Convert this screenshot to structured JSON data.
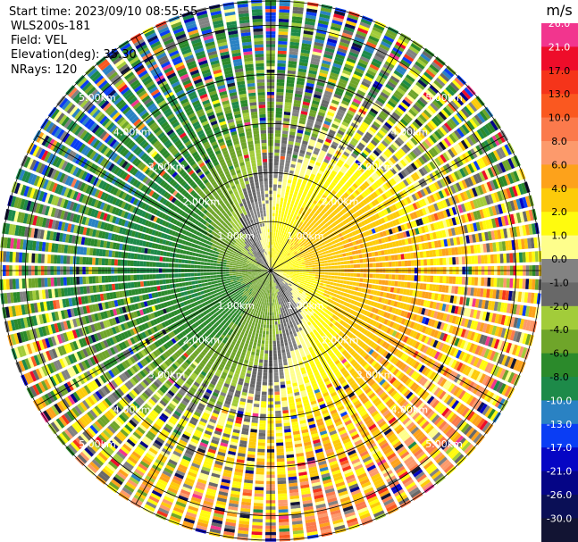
{
  "info": {
    "start_time": "Start time: 2023/09/10 08:55:55",
    "instrument": "WLS200s-181",
    "field": "Field: VEL",
    "elevation": "Elevation(deg): 35.30",
    "nrays": "NRays: 120"
  },
  "chart_data": {
    "type": "heatmap",
    "projection": "polar-ppi",
    "field": "VEL",
    "units": "m/s",
    "nrays": 120,
    "elevation_deg": 35.3,
    "max_range_km": 5.5,
    "range_rings_km": [
      1.0,
      2.0,
      3.0,
      4.0,
      5.0
    ],
    "range_ring_labels": [
      "1.00km",
      "2.00km",
      "3.00km",
      "4.00km",
      "5.00km"
    ],
    "spokes_deg": [
      0,
      30,
      60,
      90,
      120,
      150,
      180,
      210,
      240,
      270,
      300,
      330
    ],
    "colorbar": {
      "unit": "m/s",
      "bins": [
        {
          "label": "26.0",
          "color": "#f2358e"
        },
        {
          "label": "21.0",
          "color": "#ee0d2a"
        },
        {
          "label": "17.0",
          "color": "#f5341a"
        },
        {
          "label": "13.0",
          "color": "#fa5820"
        },
        {
          "label": "10.0",
          "color": "#fb7a4c"
        },
        {
          "label": "8.0",
          "color": "#fc9a6c"
        },
        {
          "label": "6.0",
          "color": "#fda21b"
        },
        {
          "label": "4.0",
          "color": "#fdcb0a"
        },
        {
          "label": "2.0",
          "color": "#fffb0e"
        },
        {
          "label": "1.0",
          "color": "#fefe8c"
        },
        {
          "label": "0.0",
          "color": "#828282"
        },
        {
          "label": "-1.0",
          "color": "#686868"
        },
        {
          "label": "-2.0",
          "color": "#a2cc3a"
        },
        {
          "label": "-4.0",
          "color": "#6fa52a"
        },
        {
          "label": "-6.0",
          "color": "#2b8a2b"
        },
        {
          "label": "-8.0",
          "color": "#1d8a49"
        },
        {
          "label": "-10.0",
          "color": "#2a82c3"
        },
        {
          "label": "-13.0",
          "color": "#0a3df4"
        },
        {
          "label": "-17.0",
          "color": "#0606c4"
        },
        {
          "label": "-21.0",
          "color": "#050586"
        },
        {
          "label": "-26.0",
          "color": "#0a0f56"
        },
        {
          "label": "-30.0",
          "color": "#121433"
        }
      ]
    },
    "wind_pattern": {
      "description_values": "radial velocity pattern",
      "positive_azimuth_deg": 45,
      "negative_azimuth_deg": 225,
      "peak_velocity_ms": 6.0,
      "noise_start_km": 2.2
    }
  }
}
